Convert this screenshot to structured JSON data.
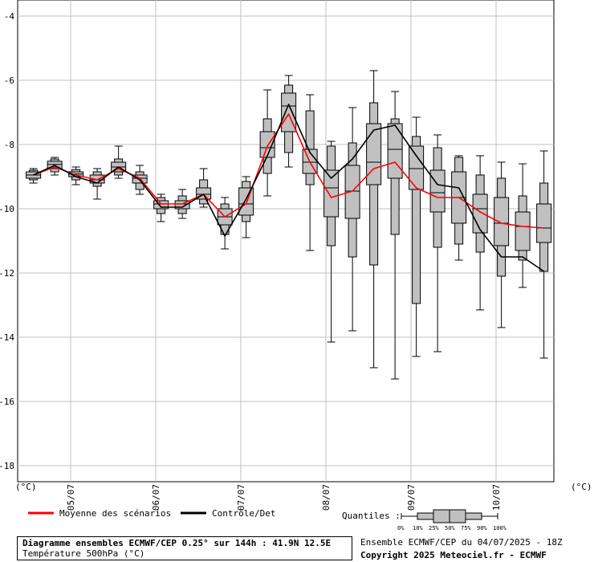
{
  "chart_data": {
    "type": "box",
    "x_day_labels": [
      "05/07",
      "06/07",
      "07/07",
      "08/07",
      "09/07",
      "10/07"
    ],
    "x_day_positions": [
      2,
      6,
      10,
      14,
      18,
      22
    ],
    "y_unit": "(°C)",
    "ylim": [
      -18.5,
      -3.5
    ],
    "y_ticks": [
      -4,
      -6,
      -8,
      -10,
      -12,
      -14,
      -16,
      -18
    ],
    "grid": true,
    "boxes": [
      {
        "x": 0.25,
        "q0": -9.2,
        "q10": -9.1,
        "q25": -9.05,
        "q50": -8.95,
        "q75": -8.85,
        "q90": -8.8,
        "q100": -8.75
      },
      {
        "x": 1.25,
        "q0": -8.95,
        "q10": -8.85,
        "q25": -8.75,
        "q50": -8.62,
        "q75": -8.52,
        "q90": -8.45,
        "q100": -8.4
      },
      {
        "x": 2.25,
        "q0": -9.25,
        "q10": -9.1,
        "q25": -9.0,
        "q50": -8.92,
        "q75": -8.85,
        "q90": -8.78,
        "q100": -8.7
      },
      {
        "x": 3.25,
        "q0": -9.7,
        "q10": -9.3,
        "q25": -9.2,
        "q50": -9.1,
        "q75": -8.95,
        "q90": -8.85,
        "q100": -8.75
      },
      {
        "x": 4.25,
        "q0": -9.05,
        "q10": -8.95,
        "q25": -8.85,
        "q50": -8.7,
        "q75": -8.55,
        "q90": -8.45,
        "q100": -8.05
      },
      {
        "x": 5.25,
        "q0": -9.55,
        "q10": -9.4,
        "q25": -9.2,
        "q50": -9.05,
        "q75": -8.95,
        "q90": -8.85,
        "q100": -8.65
      },
      {
        "x": 6.25,
        "q0": -10.4,
        "q10": -10.15,
        "q25": -10.0,
        "q50": -9.85,
        "q75": -9.75,
        "q90": -9.65,
        "q100": -9.55
      },
      {
        "x": 7.25,
        "q0": -10.3,
        "q10": -10.15,
        "q25": -10.0,
        "q50": -9.85,
        "q75": -9.75,
        "q90": -9.6,
        "q100": -9.4
      },
      {
        "x": 8.25,
        "q0": -9.95,
        "q10": -9.85,
        "q25": -9.7,
        "q50": -9.55,
        "q75": -9.35,
        "q90": -9.1,
        "q100": -8.75
      },
      {
        "x": 9.25,
        "q0": -11.25,
        "q10": -10.8,
        "q25": -10.5,
        "q50": -10.25,
        "q75": -10.0,
        "q90": -9.85,
        "q100": -9.65
      },
      {
        "x": 10.25,
        "q0": -10.9,
        "q10": -10.4,
        "q25": -10.2,
        "q50": -9.85,
        "q75": -9.35,
        "q90": -9.15,
        "q100": -9.0
      },
      {
        "x": 11.25,
        "q0": -9.6,
        "q10": -8.9,
        "q25": -8.4,
        "q50": -8.1,
        "q75": -7.6,
        "q90": -7.2,
        "q100": -6.3
      },
      {
        "x": 12.25,
        "q0": -8.7,
        "q10": -8.25,
        "q25": -7.6,
        "q50": -6.8,
        "q75": -6.4,
        "q90": -6.15,
        "q100": -5.85
      },
      {
        "x": 13.25,
        "q0": -11.3,
        "q10": -9.25,
        "q25": -8.9,
        "q50": -8.55,
        "q75": -8.15,
        "q90": -6.95,
        "q100": -6.45
      },
      {
        "x": 14.25,
        "q0": -14.15,
        "q10": -11.15,
        "q25": -10.25,
        "q50": -9.35,
        "q75": -8.8,
        "q90": -8.05,
        "q100": -7.9
      },
      {
        "x": 15.25,
        "q0": -13.8,
        "q10": -11.5,
        "q25": -10.3,
        "q50": -9.45,
        "q75": -8.65,
        "q90": -7.95,
        "q100": -6.85
      },
      {
        "x": 16.25,
        "q0": -14.95,
        "q10": -11.75,
        "q25": -9.25,
        "q50": -8.55,
        "q75": -7.35,
        "q90": -6.7,
        "q100": -5.7
      },
      {
        "x": 17.25,
        "q0": -15.3,
        "q10": -10.8,
        "q25": -9.05,
        "q50": -8.15,
        "q75": -7.35,
        "q90": -7.2,
        "q100": -6.35
      },
      {
        "x": 18.25,
        "q0": -14.6,
        "q10": -12.95,
        "q25": -9.4,
        "q50": -8.75,
        "q75": -8.05,
        "q90": -7.75,
        "q100": -7.15
      },
      {
        "x": 19.25,
        "q0": -14.45,
        "q10": -11.2,
        "q25": -10.1,
        "q50": -9.5,
        "q75": -8.8,
        "q90": -8.1,
        "q100": -7.7
      },
      {
        "x": 20.25,
        "q0": -11.6,
        "q10": -11.1,
        "q25": -10.45,
        "q50": -9.65,
        "q75": -8.85,
        "q90": -8.4,
        "q100": -8.35
      },
      {
        "x": 21.25,
        "q0": -13.15,
        "q10": -11.35,
        "q25": -10.75,
        "q50": -10.0,
        "q75": -9.55,
        "q90": -8.95,
        "q100": -8.35
      },
      {
        "x": 22.25,
        "q0": -13.7,
        "q10": -12.1,
        "q25": -11.15,
        "q50": -10.45,
        "q75": -9.65,
        "q90": -9.05,
        "q100": -8.55
      },
      {
        "x": 23.25,
        "q0": -12.45,
        "q10": -11.6,
        "q25": -11.3,
        "q50": -10.55,
        "q75": -10.1,
        "q90": -9.6,
        "q100": -8.6
      },
      {
        "x": 24.25,
        "q0": -14.65,
        "q10": -11.95,
        "q25": -11.05,
        "q50": -10.6,
        "q75": -9.85,
        "q90": -9.2,
        "q100": -8.2
      }
    ],
    "series": [
      {
        "name": "Moyenne des scénarios",
        "color": "#ff0000",
        "x": [
          0.25,
          1.25,
          2.25,
          3.25,
          4.25,
          5.25,
          6.25,
          7.25,
          8.25,
          9.25,
          10.25,
          11.25,
          12.25,
          13.25,
          14.25,
          15.25,
          16.25,
          17.25,
          18.25,
          19.25,
          20.25,
          21.25,
          22.25,
          23.25,
          24.25
        ],
        "values": [
          -8.95,
          -8.7,
          -8.95,
          -9.1,
          -8.75,
          -9.05,
          -9.85,
          -9.85,
          -9.55,
          -10.25,
          -9.85,
          -8.05,
          -7.05,
          -8.55,
          -9.65,
          -9.45,
          -8.75,
          -8.55,
          -9.35,
          -9.65,
          -9.65,
          -10.1,
          -10.45,
          -10.55,
          -10.6
        ]
      },
      {
        "name": "Contrôle/Det",
        "color": "#000000",
        "x": [
          0.25,
          1.25,
          2.25,
          3.25,
          4.25,
          5.25,
          6.25,
          7.25,
          8.25,
          9.25,
          10.25,
          11.25,
          12.25,
          13.25,
          14.25,
          15.25,
          16.25,
          17.25,
          18.25,
          19.25,
          20.25,
          21.25,
          22.25,
          23.25,
          24.25
        ],
        "values": [
          -8.95,
          -8.65,
          -9.0,
          -9.2,
          -8.7,
          -9.1,
          -9.95,
          -9.95,
          -9.55,
          -10.85,
          -9.7,
          -8.35,
          -6.75,
          -8.25,
          -9.05,
          -8.45,
          -7.55,
          -7.4,
          -8.35,
          -9.25,
          -9.35,
          -10.65,
          -11.5,
          -11.5,
          -11.95
        ]
      }
    ]
  },
  "legend": {
    "mean_label": "Moyenne des scénarios",
    "control_label": "Contrôle/Det",
    "quantiles_label": "Quantiles :",
    "quantile_ticks": [
      "0%",
      "10%",
      "25%",
      "50%",
      "75%",
      "90%",
      "100%"
    ]
  },
  "footer": {
    "title": "Diagramme ensembles ECMWF/CEP 0.25° sur 144h : 41.9N 12.5E",
    "subtitle": "Température 500hPa (°C)",
    "run_info": "Ensemble ECMWF/CEP du 04/07/2025 - 18Z",
    "copyright": "Copyright 2025 Meteociel.fr - ECMWF"
  },
  "colors": {
    "box_fill": "#c0c0c0",
    "grid": "#c0c0c0",
    "mean_line": "#ff0000",
    "control_line": "#000000"
  }
}
